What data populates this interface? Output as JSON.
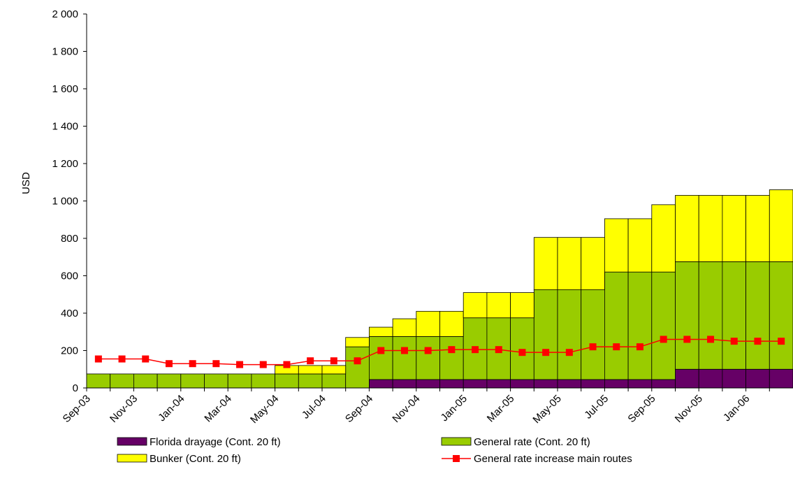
{
  "chart_data": {
    "type": "bar",
    "stacked": true,
    "y_label": "USD",
    "categories": [
      "Sep-03",
      null,
      "Nov-03",
      null,
      "Jan-04",
      null,
      "Mar-04",
      null,
      "May-04",
      null,
      "Jul-04",
      null,
      "Sep-04",
      null,
      "Nov-04",
      null,
      "Jan-05",
      null,
      "Mar-05",
      null,
      "May-05",
      null,
      "Jul-05",
      null,
      "Sep-05",
      null,
      "Nov-05",
      null,
      "Jan-06",
      null
    ],
    "series": [
      {
        "name": "Florida drayage (Cont. 20 ft)",
        "type": "bar",
        "color": "#660066",
        "values": [
          0,
          0,
          0,
          0,
          0,
          0,
          0,
          0,
          0,
          0,
          0,
          0,
          45,
          45,
          45,
          45,
          45,
          45,
          45,
          45,
          45,
          45,
          45,
          45,
          45,
          100,
          100,
          100,
          100,
          100
        ]
      },
      {
        "name": "General rate (Cont. 20 ft)",
        "type": "bar",
        "color": "#99cc00",
        "values": [
          75,
          75,
          75,
          75,
          75,
          75,
          75,
          75,
          75,
          75,
          75,
          220,
          230,
          230,
          230,
          230,
          330,
          330,
          330,
          480,
          480,
          480,
          575,
          575,
          575,
          575,
          575,
          575,
          575,
          575
        ]
      },
      {
        "name": "Bunker  (Cont. 20 ft)",
        "type": "bar",
        "color": "#ffff00",
        "values": [
          0,
          0,
          0,
          0,
          0,
          0,
          0,
          0,
          45,
          45,
          45,
          50,
          50,
          95,
          135,
          135,
          135,
          135,
          135,
          280,
          280,
          280,
          285,
          285,
          360,
          355,
          355,
          355,
          355,
          385
        ]
      },
      {
        "name": "General rate increase main routes",
        "type": "line",
        "color": "#ff0000",
        "values": [
          155,
          155,
          155,
          130,
          130,
          130,
          125,
          125,
          125,
          145,
          145,
          145,
          200,
          200,
          200,
          205,
          205,
          205,
          190,
          190,
          190,
          220,
          220,
          220,
          260,
          260,
          260,
          250,
          250,
          250
        ]
      }
    ],
    "ylim": [
      0,
      2000
    ],
    "yticks": [
      0,
      200,
      400,
      600,
      800,
      {
        "value": 1000,
        "label": "1 000"
      },
      {
        "value": 1200,
        "label": "1 200"
      },
      {
        "value": 1400,
        "label": "1 400"
      },
      {
        "value": 1600,
        "label": "1 600"
      },
      {
        "value": 1800,
        "label": "1 800"
      },
      {
        "value": 2000,
        "label": "2 000"
      }
    ],
    "grid": false
  }
}
